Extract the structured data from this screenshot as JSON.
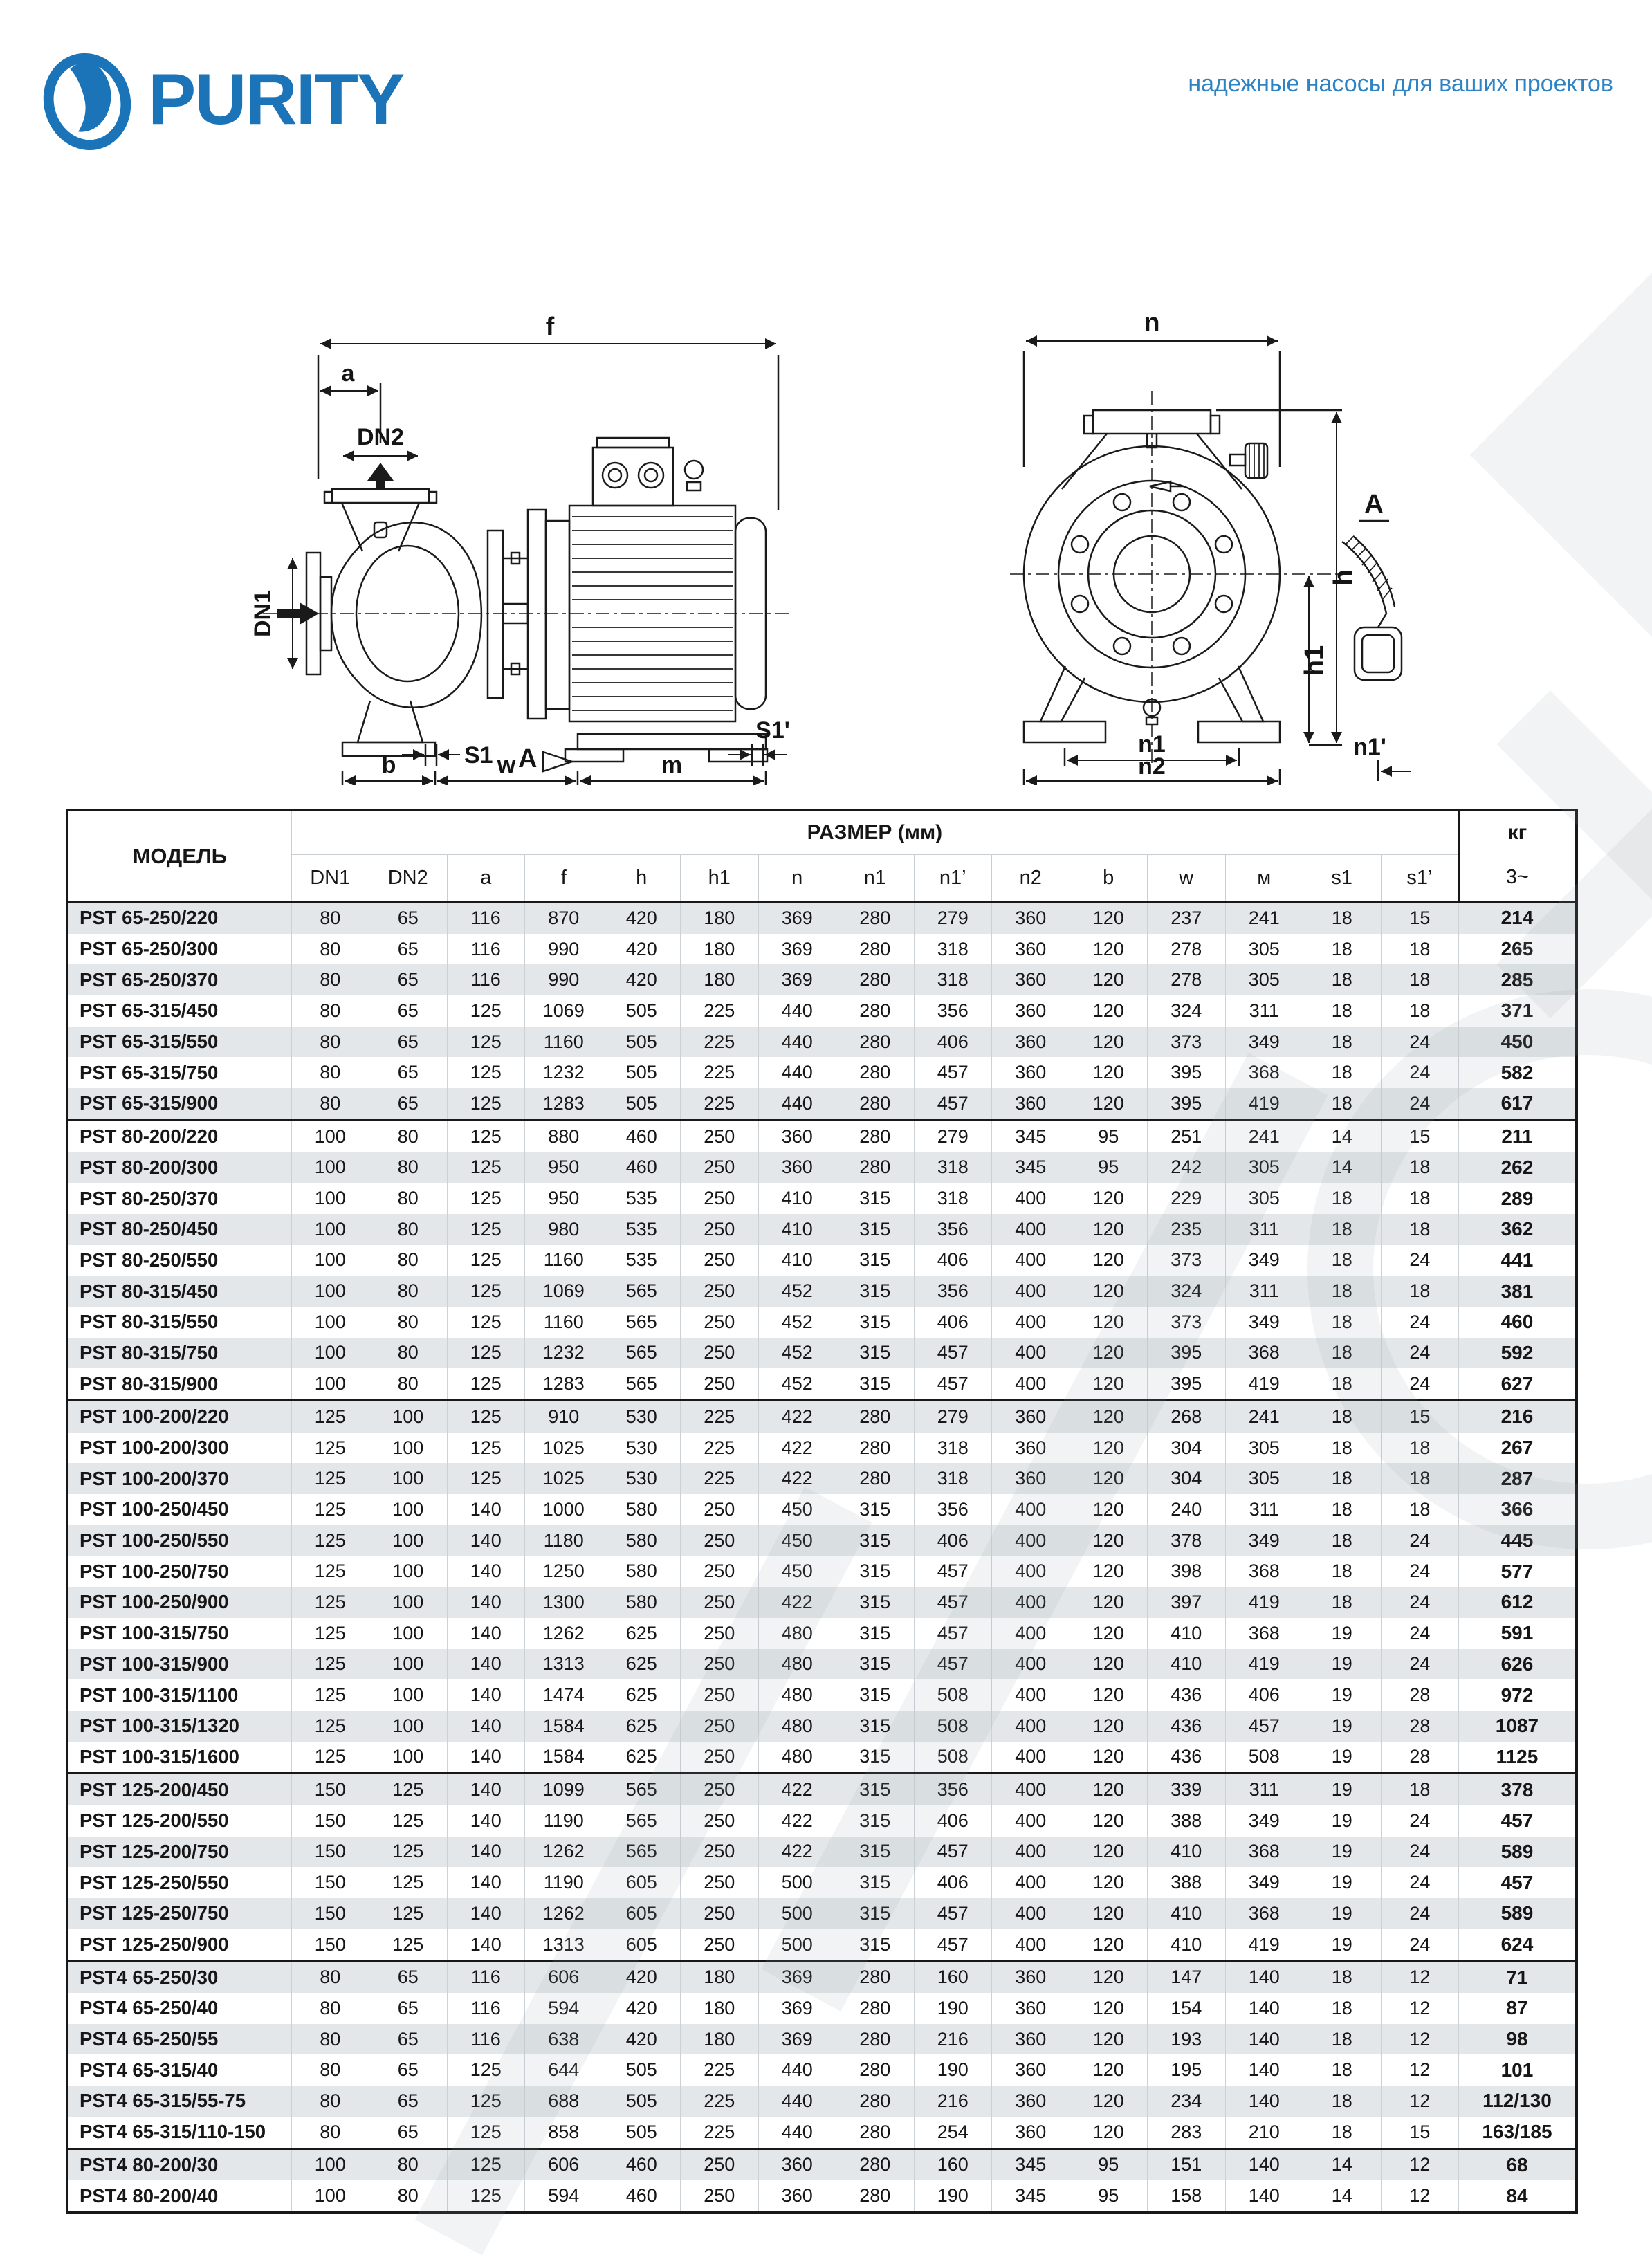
{
  "brand": {
    "name": "PURITY",
    "tagline": "надежные насосы для ваших проектов",
    "accent_color": "#1b74b8"
  },
  "drawings": {
    "side": {
      "f": "f",
      "a": "a",
      "dn2": "DN2",
      "dn1": "DN1",
      "s1": "S1",
      "view": "A",
      "s1p": "S1'",
      "b": "b",
      "w": "w",
      "m": "m"
    },
    "front": {
      "n": "n",
      "h": "h",
      "h1": "h1",
      "n1": "n1",
      "n2": "n2",
      "n1p": "n1'",
      "view": "A"
    }
  },
  "table": {
    "header": {
      "model": "МОДЕЛЬ",
      "size_group": "РАЗМЕР (мм)",
      "kg": "кг",
      "phase": "3~",
      "columns": [
        "DN1",
        "DN2",
        "a",
        "f",
        "h",
        "h1",
        "n",
        "n1",
        "n1’",
        "n2",
        "b",
        "w",
        "м",
        "s1",
        "s1’"
      ]
    },
    "groups": [
      {
        "rows": [
          {
            "model": "PST 65-250/220",
            "values": [
              80,
              65,
              116,
              870,
              420,
              180,
              369,
              280,
              279,
              360,
              120,
              237,
              241,
              18,
              15
            ],
            "kg": "214"
          },
          {
            "model": "PST 65-250/300",
            "values": [
              80,
              65,
              116,
              990,
              420,
              180,
              369,
              280,
              318,
              360,
              120,
              278,
              305,
              18,
              18
            ],
            "kg": "265"
          },
          {
            "model": "PST 65-250/370",
            "values": [
              80,
              65,
              116,
              990,
              420,
              180,
              369,
              280,
              318,
              360,
              120,
              278,
              305,
              18,
              18
            ],
            "kg": "285"
          },
          {
            "model": "PST 65-315/450",
            "values": [
              80,
              65,
              125,
              1069,
              505,
              225,
              440,
              280,
              356,
              360,
              120,
              324,
              311,
              18,
              18
            ],
            "kg": "371"
          },
          {
            "model": "PST 65-315/550",
            "values": [
              80,
              65,
              125,
              1160,
              505,
              225,
              440,
              280,
              406,
              360,
              120,
              373,
              349,
              18,
              24
            ],
            "kg": "450"
          },
          {
            "model": "PST 65-315/750",
            "values": [
              80,
              65,
              125,
              1232,
              505,
              225,
              440,
              280,
              457,
              360,
              120,
              395,
              368,
              18,
              24
            ],
            "kg": "582"
          },
          {
            "model": "PST 65-315/900",
            "values": [
              80,
              65,
              125,
              1283,
              505,
              225,
              440,
              280,
              457,
              360,
              120,
              395,
              419,
              18,
              24
            ],
            "kg": "617"
          }
        ]
      },
      {
        "rows": [
          {
            "model": "PST 80-200/220",
            "values": [
              100,
              80,
              125,
              880,
              460,
              250,
              360,
              280,
              279,
              345,
              95,
              251,
              241,
              14,
              15
            ],
            "kg": "211"
          },
          {
            "model": "PST 80-200/300",
            "values": [
              100,
              80,
              125,
              950,
              460,
              250,
              360,
              280,
              318,
              345,
              95,
              242,
              305,
              14,
              18
            ],
            "kg": "262"
          },
          {
            "model": "PST 80-250/370",
            "values": [
              100,
              80,
              125,
              950,
              535,
              250,
              410,
              315,
              318,
              400,
              120,
              229,
              305,
              18,
              18
            ],
            "kg": "289"
          },
          {
            "model": "PST 80-250/450",
            "values": [
              100,
              80,
              125,
              980,
              535,
              250,
              410,
              315,
              356,
              400,
              120,
              235,
              311,
              18,
              18
            ],
            "kg": "362"
          },
          {
            "model": "PST 80-250/550",
            "values": [
              100,
              80,
              125,
              1160,
              535,
              250,
              410,
              315,
              406,
              400,
              120,
              373,
              349,
              18,
              24
            ],
            "kg": "441"
          },
          {
            "model": "PST 80-315/450",
            "values": [
              100,
              80,
              125,
              1069,
              565,
              250,
              452,
              315,
              356,
              400,
              120,
              324,
              311,
              18,
              18
            ],
            "kg": "381"
          },
          {
            "model": "PST 80-315/550",
            "values": [
              100,
              80,
              125,
              1160,
              565,
              250,
              452,
              315,
              406,
              400,
              120,
              373,
              349,
              18,
              24
            ],
            "kg": "460"
          },
          {
            "model": "PST 80-315/750",
            "values": [
              100,
              80,
              125,
              1232,
              565,
              250,
              452,
              315,
              457,
              400,
              120,
              395,
              368,
              18,
              24
            ],
            "kg": "592"
          },
          {
            "model": "PST 80-315/900",
            "values": [
              100,
              80,
              125,
              1283,
              565,
              250,
              452,
              315,
              457,
              400,
              120,
              395,
              419,
              18,
              24
            ],
            "kg": "627"
          }
        ]
      },
      {
        "rows": [
          {
            "model": "PST 100-200/220",
            "values": [
              125,
              100,
              125,
              910,
              530,
              225,
              422,
              280,
              279,
              360,
              120,
              268,
              241,
              18,
              15
            ],
            "kg": "216"
          },
          {
            "model": "PST 100-200/300",
            "values": [
              125,
              100,
              125,
              1025,
              530,
              225,
              422,
              280,
              318,
              360,
              120,
              304,
              305,
              18,
              18
            ],
            "kg": "267"
          },
          {
            "model": "PST 100-200/370",
            "values": [
              125,
              100,
              125,
              1025,
              530,
              225,
              422,
              280,
              318,
              360,
              120,
              304,
              305,
              18,
              18
            ],
            "kg": "287"
          },
          {
            "model": "PST 100-250/450",
            "values": [
              125,
              100,
              140,
              1000,
              580,
              250,
              450,
              315,
              356,
              400,
              120,
              240,
              311,
              18,
              18
            ],
            "kg": "366"
          },
          {
            "model": "PST 100-250/550",
            "values": [
              125,
              100,
              140,
              1180,
              580,
              250,
              450,
              315,
              406,
              400,
              120,
              378,
              349,
              18,
              24
            ],
            "kg": "445"
          },
          {
            "model": "PST 100-250/750",
            "values": [
              125,
              100,
              140,
              1250,
              580,
              250,
              450,
              315,
              457,
              400,
              120,
              398,
              368,
              18,
              24
            ],
            "kg": "577"
          },
          {
            "model": "PST 100-250/900",
            "values": [
              125,
              100,
              140,
              1300,
              580,
              250,
              422,
              315,
              457,
              400,
              120,
              397,
              419,
              18,
              24
            ],
            "kg": "612"
          },
          {
            "model": "PST 100-315/750",
            "values": [
              125,
              100,
              140,
              1262,
              625,
              250,
              480,
              315,
              457,
              400,
              120,
              410,
              368,
              19,
              24
            ],
            "kg": "591"
          },
          {
            "model": "PST 100-315/900",
            "values": [
              125,
              100,
              140,
              1313,
              625,
              250,
              480,
              315,
              457,
              400,
              120,
              410,
              419,
              19,
              24
            ],
            "kg": "626"
          },
          {
            "model": "PST 100-315/1100",
            "values": [
              125,
              100,
              140,
              1474,
              625,
              250,
              480,
              315,
              508,
              400,
              120,
              436,
              406,
              19,
              28
            ],
            "kg": "972"
          },
          {
            "model": "PST 100-315/1320",
            "values": [
              125,
              100,
              140,
              1584,
              625,
              250,
              480,
              315,
              508,
              400,
              120,
              436,
              457,
              19,
              28
            ],
            "kg": "1087"
          },
          {
            "model": "PST 100-315/1600",
            "values": [
              125,
              100,
              140,
              1584,
              625,
              250,
              480,
              315,
              508,
              400,
              120,
              436,
              508,
              19,
              28
            ],
            "kg": "1125"
          }
        ]
      },
      {
        "rows": [
          {
            "model": "PST 125-200/450",
            "values": [
              150,
              125,
              140,
              1099,
              565,
              250,
              422,
              315,
              356,
              400,
              120,
              339,
              311,
              19,
              18
            ],
            "kg": "378"
          },
          {
            "model": "PST 125-200/550",
            "values": [
              150,
              125,
              140,
              1190,
              565,
              250,
              422,
              315,
              406,
              400,
              120,
              388,
              349,
              19,
              24
            ],
            "kg": "457"
          },
          {
            "model": "PST 125-200/750",
            "values": [
              150,
              125,
              140,
              1262,
              565,
              250,
              422,
              315,
              457,
              400,
              120,
              410,
              368,
              19,
              24
            ],
            "kg": "589"
          },
          {
            "model": "PST 125-250/550",
            "values": [
              150,
              125,
              140,
              1190,
              605,
              250,
              500,
              315,
              406,
              400,
              120,
              388,
              349,
              19,
              24
            ],
            "kg": "457"
          },
          {
            "model": "PST 125-250/750",
            "values": [
              150,
              125,
              140,
              1262,
              605,
              250,
              500,
              315,
              457,
              400,
              120,
              410,
              368,
              19,
              24
            ],
            "kg": "589"
          },
          {
            "model": "PST 125-250/900",
            "values": [
              150,
              125,
              140,
              1313,
              605,
              250,
              500,
              315,
              457,
              400,
              120,
              410,
              419,
              19,
              24
            ],
            "kg": "624"
          }
        ]
      },
      {
        "rows": [
          {
            "model": "PST4 65-250/30",
            "values": [
              80,
              65,
              116,
              606,
              420,
              180,
              369,
              280,
              160,
              360,
              120,
              147,
              140,
              18,
              12
            ],
            "kg": "71"
          },
          {
            "model": "PST4 65-250/40",
            "values": [
              80,
              65,
              116,
              594,
              420,
              180,
              369,
              280,
              190,
              360,
              120,
              154,
              140,
              18,
              12
            ],
            "kg": "87"
          },
          {
            "model": "PST4 65-250/55",
            "values": [
              80,
              65,
              116,
              638,
              420,
              180,
              369,
              280,
              216,
              360,
              120,
              193,
              140,
              18,
              12
            ],
            "kg": "98"
          },
          {
            "model": "PST4 65-315/40",
            "values": [
              80,
              65,
              125,
              644,
              505,
              225,
              440,
              280,
              190,
              360,
              120,
              195,
              140,
              18,
              12
            ],
            "kg": "101"
          },
          {
            "model": "PST4 65-315/55-75",
            "values": [
              80,
              65,
              125,
              688,
              505,
              225,
              440,
              280,
              216,
              360,
              120,
              234,
              140,
              18,
              12
            ],
            "kg": "112/130"
          },
          {
            "model": "PST4 65-315/110-150",
            "values": [
              80,
              65,
              125,
              858,
              505,
              225,
              440,
              280,
              254,
              360,
              120,
              283,
              210,
              18,
              15
            ],
            "kg": "163/185"
          }
        ]
      },
      {
        "rows": [
          {
            "model": "PST4 80-200/30",
            "values": [
              100,
              80,
              125,
              606,
              460,
              250,
              360,
              280,
              160,
              345,
              95,
              151,
              140,
              14,
              12
            ],
            "kg": "68"
          },
          {
            "model": "PST4 80-200/40",
            "values": [
              100,
              80,
              125,
              594,
              460,
              250,
              360,
              280,
              190,
              345,
              95,
              158,
              140,
              14,
              12
            ],
            "kg": "84"
          }
        ]
      }
    ]
  }
}
